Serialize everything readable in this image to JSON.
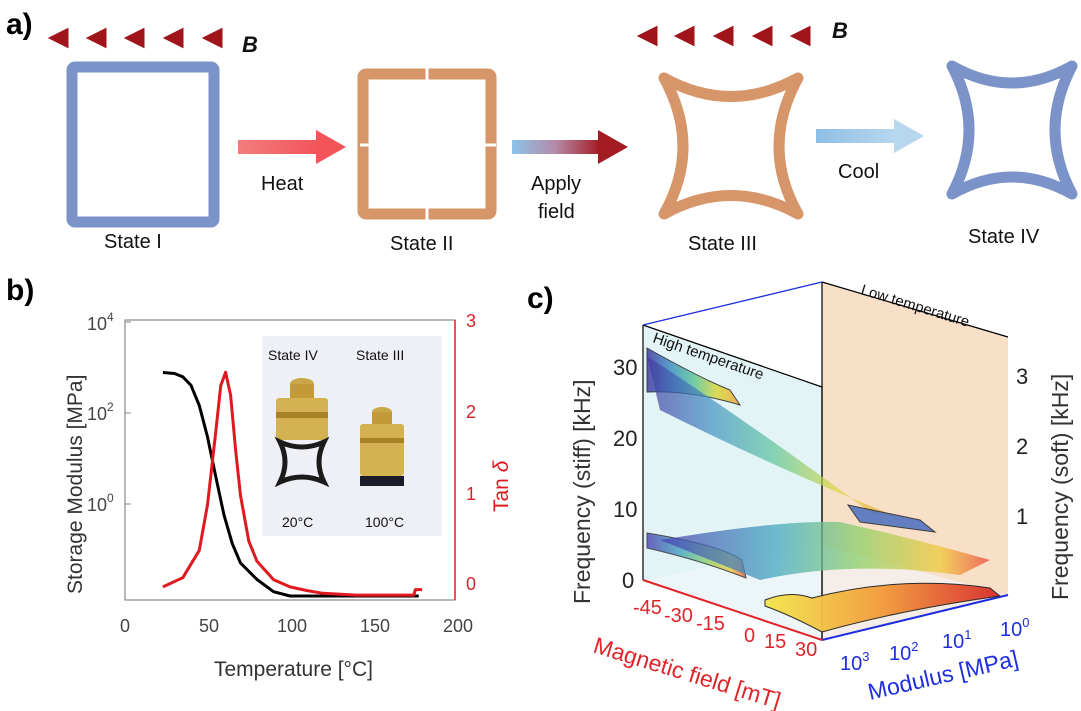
{
  "panel_a": {
    "label": "a)",
    "field_symbol": "B",
    "states": [
      "State I",
      "State II",
      "State III",
      "State IV"
    ],
    "steps": {
      "heat": "Heat",
      "apply_1": "Apply",
      "apply_2": "field",
      "cool": "Cool"
    },
    "colors": {
      "cold_blue": "#7b93c8",
      "warm_orange": "#d7956a",
      "field_red": "#b01a1a",
      "heat_arrow": "#f26b6b",
      "cool_arrow": "#8fc0e6"
    }
  },
  "panel_b": {
    "label": "b)",
    "left_ticks": {
      "t4": "10",
      "t4e": "4",
      "t2": "10",
      "t2e": "2",
      "t0": "10",
      "t0e": "0"
    },
    "right_ticks": [
      "3",
      "2",
      "1",
      "0"
    ],
    "x_ticks": [
      "0",
      "50",
      "100",
      "150",
      "200"
    ],
    "ylabel_left": "Storage Modulus [MPa]",
    "ylabel_right_main": "Tan ",
    "ylabel_right_symbol": "δ",
    "xlabel": "Temperature [°C]",
    "inset": {
      "state_left": "State IV",
      "state_right": "State III",
      "temp_left": "20°C",
      "temp_right": "100°C"
    },
    "chart_data": {
      "type": "line",
      "xlim": [
        0,
        200
      ],
      "series": [
        {
          "axis": "left",
          "color": "#000000",
          "scale": "log",
          "ylim": [
            0.1,
            10000
          ],
          "x": [
            23,
            30,
            35,
            40,
            45,
            50,
            55,
            60,
            65,
            70,
            80,
            90,
            100,
            110,
            130,
            150,
            170,
            178
          ],
          "y": [
            1200,
            1150,
            1000,
            700,
            300,
            80,
            15,
            3,
            0.9,
            0.4,
            0.2,
            0.12,
            0.1,
            0.1,
            0.1,
            0.1,
            0.1,
            0.1
          ]
        },
        {
          "axis": "right",
          "color": "#e0191f",
          "scale": "linear",
          "ylim": [
            0,
            3
          ],
          "x": [
            23,
            35,
            45,
            50,
            55,
            58,
            61,
            64,
            67,
            70,
            75,
            80,
            90,
            100,
            110,
            120,
            140,
            160,
            175,
            176,
            180
          ],
          "y": [
            0.1,
            0.2,
            0.5,
            1.0,
            1.8,
            2.3,
            2.45,
            2.2,
            1.6,
            1.1,
            0.6,
            0.38,
            0.18,
            0.1,
            0.06,
            0.03,
            0.01,
            0.01,
            0.01,
            0.07,
            0.07
          ]
        }
      ]
    }
  },
  "panel_c": {
    "label": "c)",
    "z_left_ticks": [
      "30",
      "20",
      "10",
      "0"
    ],
    "z_right_ticks": [
      "3",
      "2",
      "1"
    ],
    "z_left_label": "Frequency (stiff) [kHz]",
    "z_right_label": "Frequency (soft) [kHz]",
    "wall_left": "High temperature",
    "wall_right": "Low temperature",
    "field_ticks": [
      "-45",
      "-30",
      "-15",
      "0",
      "15",
      "30"
    ],
    "field_label": "Magnetic field [mT]",
    "modulus_ticks": [
      {
        "base": "10",
        "exp": "3"
      },
      {
        "base": "10",
        "exp": "2"
      },
      {
        "base": "10",
        "exp": "1"
      },
      {
        "base": "10",
        "exp": "0"
      }
    ],
    "modulus_label": "Modulus [MPa]",
    "colors": {
      "high_wall": "#dff3f4",
      "low_wall": "#f8dfc8",
      "field_axis": "#e0242a",
      "modulus_axis": "#1e2ee0"
    }
  }
}
